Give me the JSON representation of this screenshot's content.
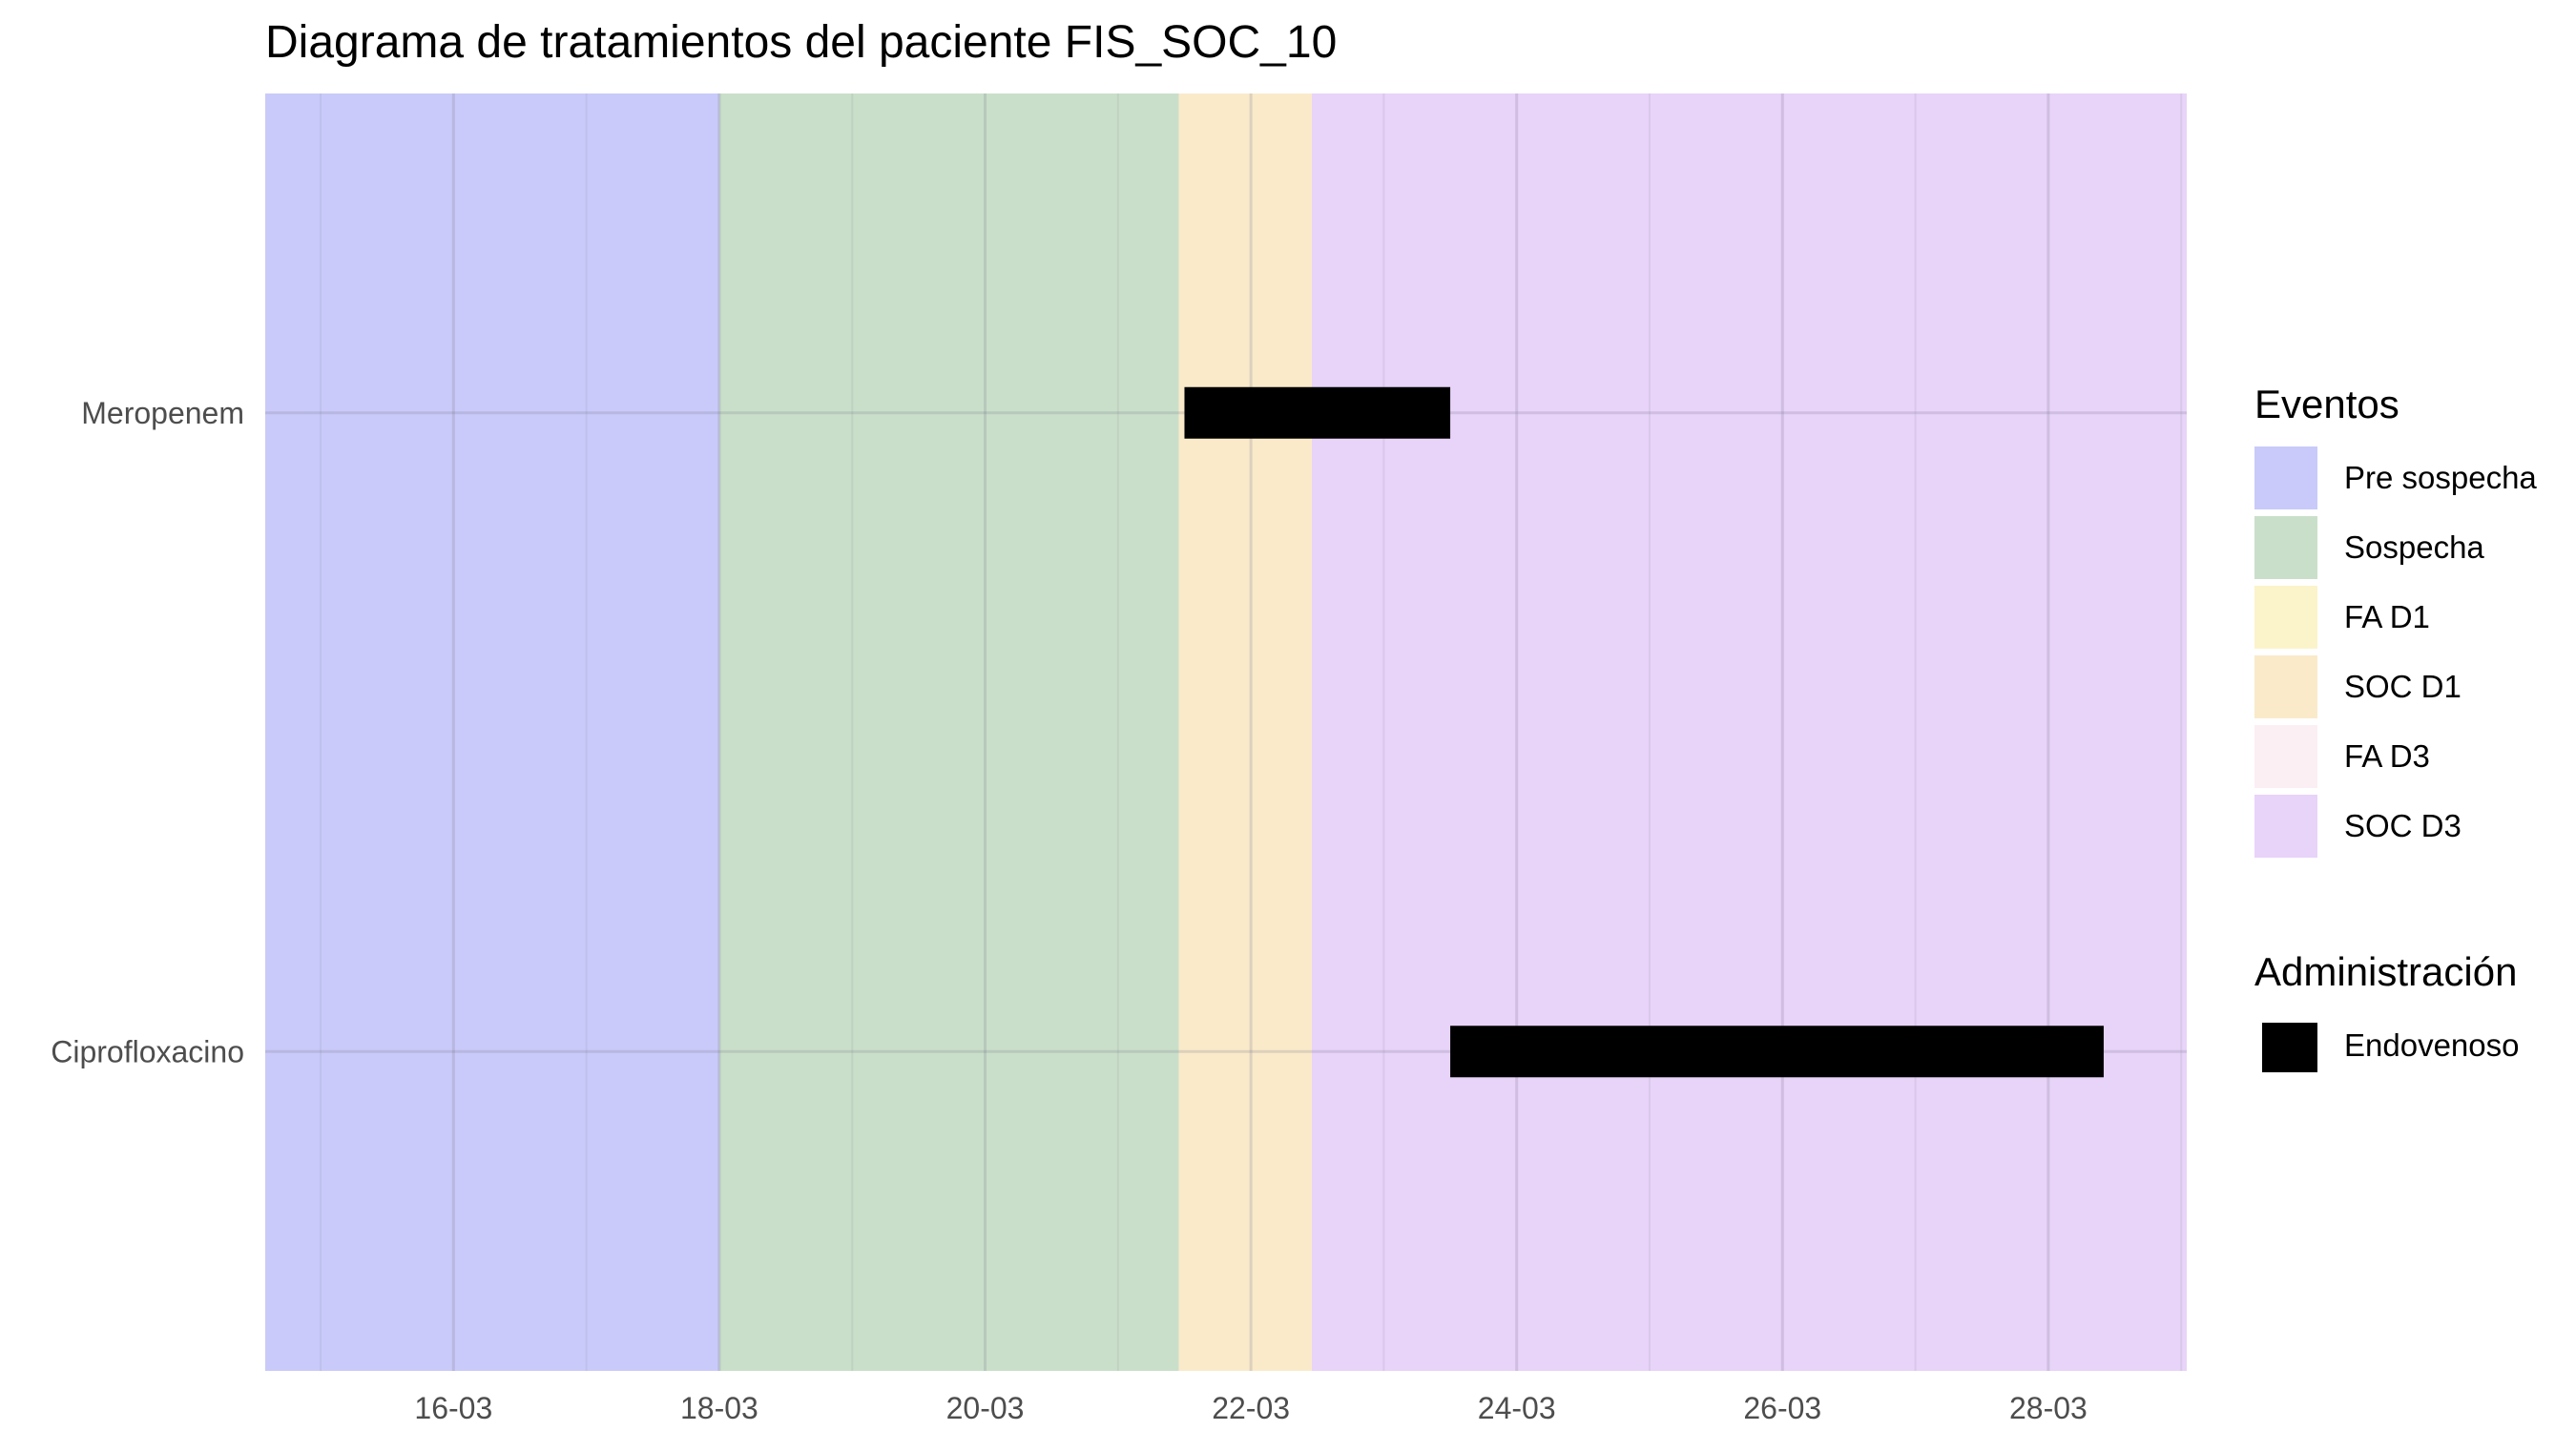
{
  "chart_data": {
    "type": "gantt",
    "title": "Diagrama de tratamientos del paciente FIS_SOC_10",
    "xlabel": "",
    "ylabel": "",
    "x_axis": {
      "type": "date",
      "domain": [
        "2024-03-14T14:00",
        "2024-03-29T01:00"
      ],
      "ticks": [
        {
          "date": "2024-03-16",
          "label": "16-03"
        },
        {
          "date": "2024-03-18",
          "label": "18-03"
        },
        {
          "date": "2024-03-20",
          "label": "20-03"
        },
        {
          "date": "2024-03-22",
          "label": "22-03"
        },
        {
          "date": "2024-03-24",
          "label": "24-03"
        },
        {
          "date": "2024-03-26",
          "label": "26-03"
        },
        {
          "date": "2024-03-28",
          "label": "28-03"
        }
      ],
      "minor_ticks": [
        "2024-03-15",
        "2024-03-17",
        "2024-03-19",
        "2024-03-21",
        "2024-03-23",
        "2024-03-25",
        "2024-03-27",
        "2024-03-29"
      ]
    },
    "categories": [
      "Meropenem",
      "Ciprofloxacino"
    ],
    "events": [
      {
        "name": "Pre sospecha",
        "start": "2024-03-14T14:00",
        "end": "2024-03-18T00:00",
        "color": "#c9caf9"
      },
      {
        "name": "Sospecha",
        "start": "2024-03-18T00:00",
        "end": "2024-03-21T11:00",
        "color": "#cadfca"
      },
      {
        "name": "SOC D1",
        "start": "2024-03-21T11:00",
        "end": "2024-03-22T11:00",
        "color": "#faeaca"
      },
      {
        "name": "SOC D3",
        "start": "2024-03-22T11:00",
        "end": "2024-03-29T01:00",
        "color": "#e8d3f9"
      }
    ],
    "treatments": [
      {
        "drug": "Meropenem",
        "administration": "Endovenoso",
        "start": "2024-03-21T12:00",
        "end": "2024-03-23T12:00"
      },
      {
        "drug": "Ciprofloxacino",
        "administration": "Endovenoso",
        "start": "2024-03-23T12:00",
        "end": "2024-03-28T10:00"
      }
    ],
    "legend": {
      "position": "right",
      "eventos": {
        "title": "Eventos",
        "items": [
          {
            "label": "Pre sospecha",
            "color": "#c9caf9"
          },
          {
            "label": "Sospecha",
            "color": "#cadfca"
          },
          {
            "label": "FA D1",
            "color": "#fbf4ca"
          },
          {
            "label": "SOC D1",
            "color": "#faeaca"
          },
          {
            "label": "FA D3",
            "color": "#fbeff3"
          },
          {
            "label": "SOC D3",
            "color": "#e8d3f9"
          }
        ]
      },
      "administracion": {
        "title": "Administración",
        "items": [
          {
            "label": "Endovenoso",
            "color": "#000000"
          }
        ]
      }
    },
    "grid": true
  }
}
